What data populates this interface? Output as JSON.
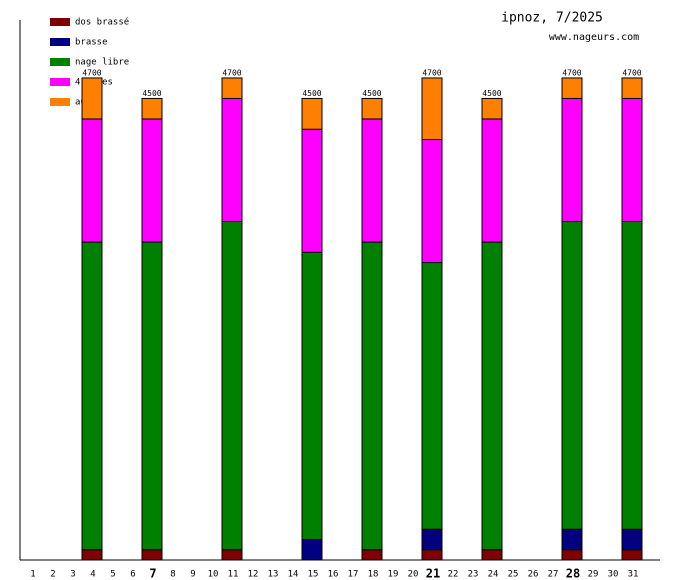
{
  "chart_data": {
    "type": "stacked_bar",
    "title": "ipnoz, 7/2025",
    "subtitle": "www.nageurs.com",
    "categories": [
      "1",
      "2",
      "3",
      "4",
      "5",
      "6",
      "7",
      "8",
      "9",
      "10",
      "11",
      "12",
      "13",
      "14",
      "15",
      "16",
      "17",
      "18",
      "19",
      "20",
      "21",
      "22",
      "23",
      "24",
      "25",
      "26",
      "27",
      "28",
      "29",
      "30",
      "31"
    ],
    "emphasized_categories": [
      6,
      20,
      27
    ],
    "ylim": [
      0,
      5265
    ],
    "series": [
      {
        "name": "dos brassé",
        "color": "#800000",
        "values": [
          null,
          null,
          null,
          100,
          null,
          null,
          100,
          null,
          null,
          null,
          100,
          null,
          null,
          null,
          0,
          null,
          null,
          100,
          null,
          null,
          100,
          null,
          null,
          100,
          null,
          null,
          null,
          100,
          null,
          null,
          100
        ]
      },
      {
        "name": "brasse",
        "color": "#000080",
        "values": [
          null,
          null,
          null,
          0,
          null,
          null,
          0,
          null,
          null,
          null,
          0,
          null,
          null,
          null,
          200,
          null,
          null,
          0,
          null,
          null,
          200,
          null,
          null,
          0,
          null,
          null,
          null,
          200,
          null,
          null,
          200
        ]
      },
      {
        "name": "nage libre",
        "color": "#008000",
        "values": [
          null,
          null,
          null,
          3000,
          null,
          null,
          3000,
          null,
          null,
          null,
          3200,
          null,
          null,
          null,
          2800,
          null,
          null,
          3000,
          null,
          null,
          2600,
          null,
          null,
          3000,
          null,
          null,
          null,
          3000,
          null,
          null,
          3000
        ]
      },
      {
        "name": "4 nages",
        "color": "#ff00ff",
        "values": [
          null,
          null,
          null,
          1200,
          null,
          null,
          1200,
          null,
          null,
          null,
          1200,
          null,
          null,
          null,
          1200,
          null,
          null,
          1200,
          null,
          null,
          1200,
          null,
          null,
          1200,
          null,
          null,
          null,
          1200,
          null,
          null,
          1200
        ]
      },
      {
        "name": "autre",
        "color": "#ff8000",
        "values": [
          null,
          null,
          null,
          400,
          null,
          null,
          200,
          null,
          null,
          null,
          200,
          null,
          null,
          null,
          300,
          null,
          null,
          200,
          null,
          null,
          600,
          null,
          null,
          200,
          null,
          null,
          null,
          200,
          null,
          null,
          200
        ]
      }
    ],
    "totals": [
      null,
      null,
      null,
      4700,
      null,
      null,
      4500,
      null,
      null,
      null,
      4700,
      null,
      null,
      null,
      4500,
      null,
      null,
      4500,
      null,
      null,
      4700,
      null,
      null,
      4500,
      null,
      null,
      null,
      4700,
      null,
      null,
      4700
    ]
  }
}
